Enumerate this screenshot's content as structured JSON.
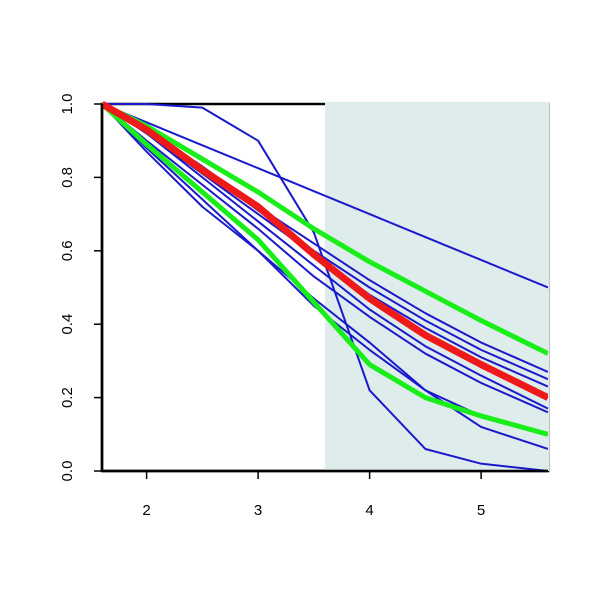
{
  "chart_data": {
    "type": "line",
    "x": [
      1.6,
      2,
      2.5,
      3,
      3.5,
      4,
      4.5,
      5,
      5.6
    ],
    "xlim": [
      1.6,
      5.6
    ],
    "ylim": [
      0,
      1
    ],
    "xticks": [
      2,
      3,
      4,
      5
    ],
    "yticks": [
      {
        "value": 0,
        "label": "0.0"
      },
      0.2,
      0.4,
      0.6,
      0.8,
      {
        "value": 1,
        "label": "1.0"
      }
    ],
    "shaded_region": {
      "xlim": [
        3.6,
        5.6
      ],
      "color": "#deecec"
    },
    "series": [
      {
        "color": "#1a1acc",
        "width": 2,
        "values": [
          1,
          0.95,
          0.8875,
          0.825,
          0.7625,
          0.7,
          0.6375,
          0.575,
          0.5
        ]
      },
      {
        "color": "#1a1acc",
        "width": 2,
        "values": [
          1,
          1,
          0.99,
          0.9,
          0.65,
          0.22,
          0.06,
          0.02,
          0.0
        ]
      },
      {
        "color": "#1a1acc",
        "width": 2,
        "values": [
          1,
          0.93,
          0.83,
          0.72,
          0.62,
          0.52,
          0.43,
          0.35,
          0.27
        ]
      },
      {
        "color": "#1a1acc",
        "width": 2,
        "values": [
          1,
          0.93,
          0.82,
          0.71,
          0.6,
          0.5,
          0.41,
          0.33,
          0.25
        ]
      },
      {
        "color": "#1a1acc",
        "width": 2,
        "values": [
          1,
          0.92,
          0.81,
          0.7,
          0.59,
          0.48,
          0.39,
          0.31,
          0.23
        ]
      },
      {
        "color": "#1a1acc",
        "width": 2,
        "values": [
          1,
          0.92,
          0.8,
          0.68,
          0.56,
          0.44,
          0.34,
          0.26,
          0.17
        ]
      },
      {
        "color": "#1a1acc",
        "width": 2,
        "values": [
          1,
          0.9,
          0.78,
          0.66,
          0.53,
          0.42,
          0.32,
          0.24,
          0.16
        ]
      },
      {
        "color": "#1a1acc",
        "width": 2,
        "values": [
          1,
          0.88,
          0.74,
          0.6,
          0.45,
          0.33,
          0.22,
          0.15,
          0.1
        ]
      },
      {
        "color": "#1a1acc",
        "width": 2,
        "values": [
          1,
          0.87,
          0.72,
          0.6,
          0.47,
          0.35,
          0.22,
          0.12,
          0.06
        ]
      },
      {
        "color": "#1aee1a",
        "width": 5,
        "values": [
          1,
          0.94,
          0.85,
          0.76,
          0.66,
          0.57,
          0.49,
          0.41,
          0.32
        ]
      },
      {
        "color": "#1aee1a",
        "width": 5,
        "values": [
          1,
          0.89,
          0.76,
          0.63,
          0.46,
          0.29,
          0.2,
          0.15,
          0.1
        ]
      },
      {
        "color": "#ee1a1a",
        "width": 7,
        "values": [
          1,
          0.93,
          0.82,
          0.72,
          0.59,
          0.47,
          0.37,
          0.29,
          0.2
        ]
      }
    ]
  }
}
